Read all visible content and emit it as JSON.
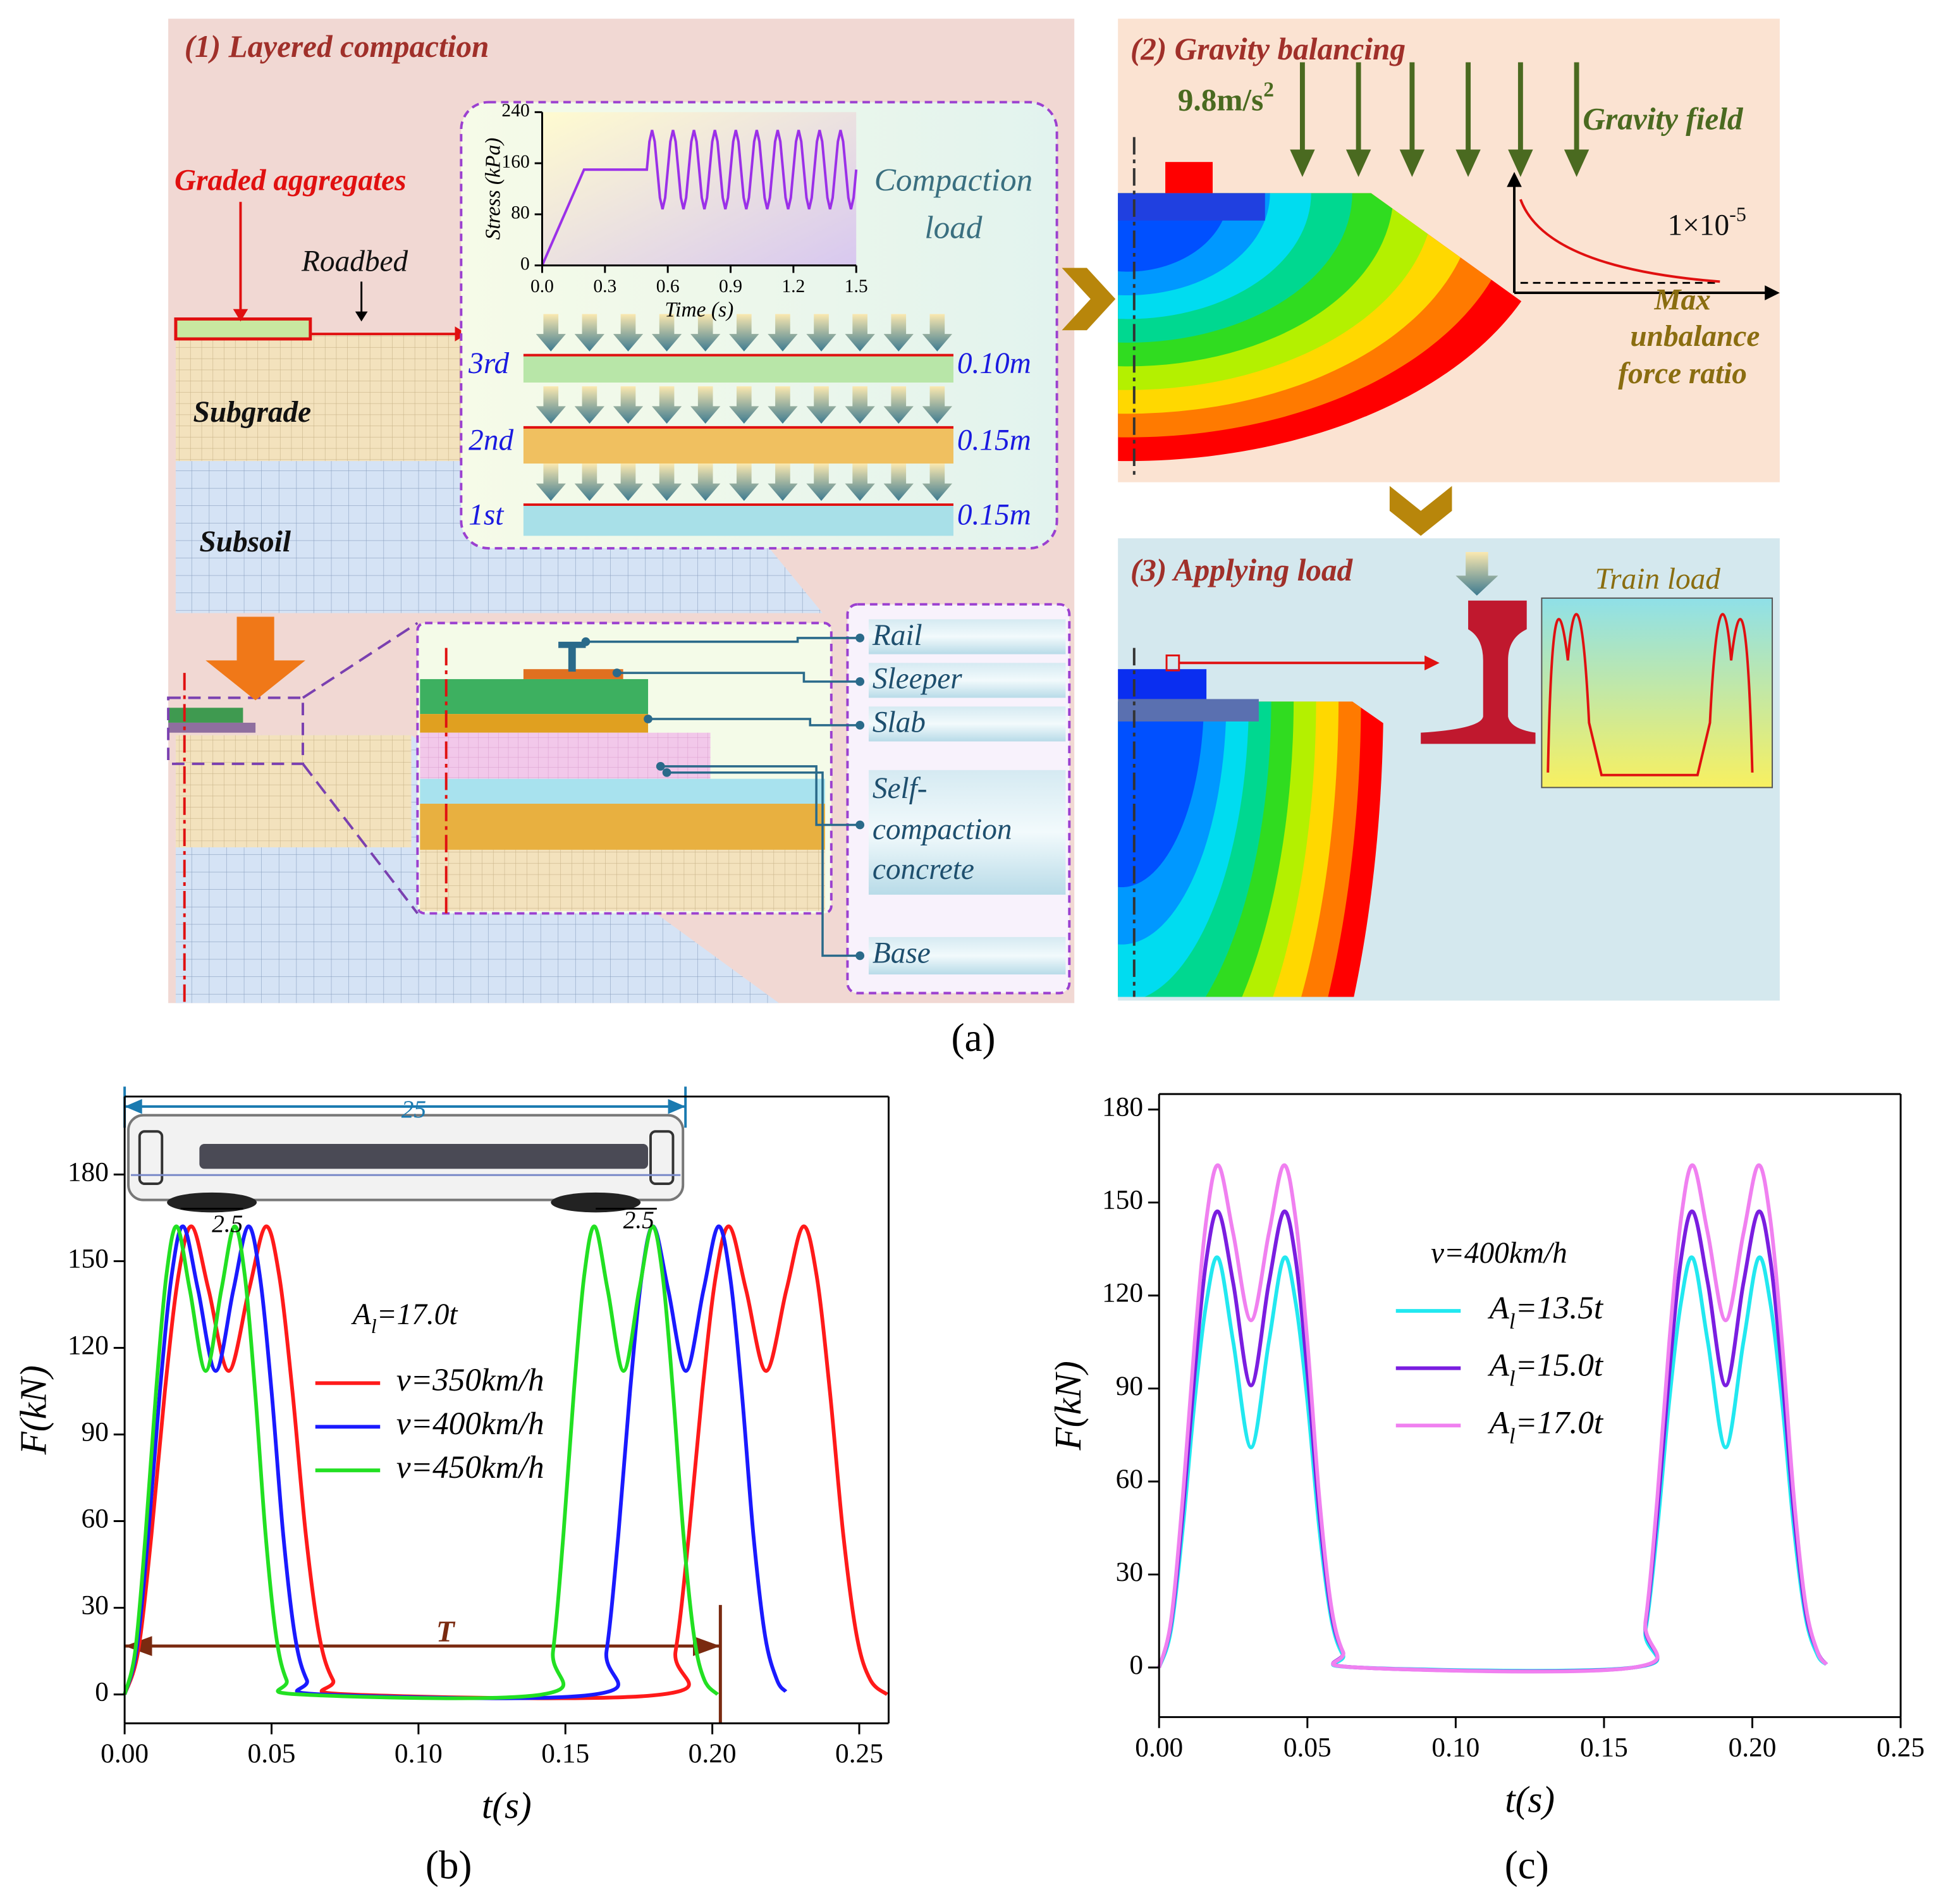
{
  "panel_a": {
    "caption": "(a)",
    "compaction": {
      "title": "(1)  Layered compaction",
      "graded_aggregates": "Graded aggregates",
      "roadbed": "Roadbed",
      "subgrade": "Subgrade",
      "subsoil": "Subsoil",
      "compaction_load": [
        "Compaction",
        "load"
      ],
      "layers": [
        {
          "label": "3rd",
          "thickness": "0.10m"
        },
        {
          "label": "2nd",
          "thickness": "0.15m"
        },
        {
          "label": "1st",
          "thickness": "0.15m"
        }
      ],
      "components": [
        "Rail",
        "Sleeper",
        "Slab",
        "Self-",
        "compaction",
        "concrete",
        "Base"
      ]
    },
    "gravity": {
      "title": "(2)  Gravity balancing",
      "acceleration": "9.8m/s2",
      "field": "Gravity field",
      "threshold": "1×10-5",
      "ratio": [
        "Max",
        "unbalance",
        "force ratio"
      ]
    },
    "load": {
      "title": "(3)  Applying load",
      "train_load": "Train load"
    }
  },
  "chart_data": [
    {
      "type": "line",
      "y_label": "Stress (kPa)",
      "x_label": "Time (s)",
      "xlim": [
        0,
        1.5
      ],
      "ylim": [
        0,
        240
      ],
      "xticks": [
        {
          "value": 0,
          "label": "0.0"
        },
        {
          "value": 0.3,
          "label": "0.3"
        },
        {
          "value": 0.6,
          "label": "0.6"
        },
        {
          "value": 0.9,
          "label": "0.9"
        },
        {
          "value": 1.2,
          "label": "1.2"
        },
        {
          "value": 1.5,
          "label": "1.5"
        }
      ],
      "yticks": [
        0,
        80,
        160,
        240
      ],
      "series": [
        {
          "color": "#9b30e8",
          "x": [
            0,
            0.2,
            0.5,
            0.5125,
            0.525,
            0.5375,
            0.55,
            0.5625,
            0.575,
            0.5875,
            0.6,
            0.6125,
            0.625,
            0.6375,
            0.65,
            0.6625,
            0.675,
            0.6875,
            0.7,
            0.7125,
            0.725,
            0.7375,
            0.75,
            0.7625,
            0.775,
            0.7875,
            0.8,
            0.8125,
            0.825,
            0.8375,
            0.85,
            0.8625,
            0.875,
            0.8875,
            0.9,
            0.9125,
            0.925,
            0.9375,
            0.95,
            0.9625,
            0.975,
            0.9875,
            1.0,
            1.0125,
            1.025,
            1.0375,
            1.05,
            1.0625,
            1.075,
            1.0875,
            1.1,
            1.1125,
            1.125,
            1.1375,
            1.15,
            1.1625,
            1.175,
            1.1875,
            1.2,
            1.2125,
            1.225,
            1.2375,
            1.25,
            1.2625,
            1.275,
            1.2875,
            1.3,
            1.3125,
            1.325,
            1.3375,
            1.35,
            1.3625,
            1.375,
            1.3875,
            1.4,
            1.4125,
            1.425,
            1.4375,
            1.45,
            1.4625,
            1.475,
            1.4875,
            1.5
          ],
          "values": [
            0,
            150,
            150,
            194,
            212,
            194,
            150,
            106,
            88,
            106,
            150,
            194,
            212,
            194,
            150,
            106,
            88,
            106,
            150,
            194,
            212,
            194,
            150,
            106,
            88,
            106,
            150,
            194,
            212,
            194,
            150,
            106,
            88,
            106,
            150,
            194,
            212,
            194,
            150,
            106,
            88,
            106,
            150,
            194,
            212,
            194,
            150,
            106,
            88,
            106,
            150,
            194,
            212,
            194,
            150,
            106,
            88,
            106,
            150,
            194,
            212,
            194,
            150,
            106,
            88,
            106,
            150,
            194,
            212,
            194,
            150,
            106,
            88,
            106,
            150,
            194,
            212,
            194,
            150,
            106,
            88,
            106,
            150
          ]
        }
      ]
    },
    {
      "type": "line",
      "caption": "(b)",
      "x_label": "t(s)",
      "y_label": "F(kN)",
      "xlim": [
        0,
        0.26
      ],
      "ylim": [
        -10,
        207
      ],
      "xticks": [
        {
          "value": 0,
          "label": "0.00"
        },
        {
          "value": 0.05,
          "label": "0.05"
        },
        {
          "value": 0.1,
          "label": "0.10"
        },
        {
          "value": 0.15,
          "label": "0.15"
        },
        {
          "value": 0.2,
          "label": "0.20"
        },
        {
          "value": 0.25,
          "label": "0.25"
        }
      ],
      "yticks": [
        0,
        30,
        60,
        90,
        120,
        150,
        180
      ],
      "annotations": [
        "Al=17.0t",
        "25",
        "2.5",
        "2.5",
        "T"
      ],
      "series": [
        {
          "name": "v=350km/h",
          "color": "#ff1a1a",
          "x": [
            0,
            0.0046,
            0.0091,
            0.0137,
            0.0183,
            0.0229,
            0.0286,
            0.0354,
            0.0423,
            0.048,
            0.0526,
            0.0571,
            0.0617,
            0.0663,
            0.0709,
            0.0766,
            0.1829,
            0.1875,
            0.192,
            0.1966,
            0.2012,
            0.2058,
            0.2115,
            0.2183,
            0.2252,
            0.2309,
            0.2355,
            0.24,
            0.2446,
            0.2492,
            0.2538,
            0.2595
          ],
          "values": [
            0,
            15,
            55,
            105,
            145,
            162,
            140,
            112,
            140,
            162,
            145,
            105,
            55,
            20,
            5,
            0,
            0,
            15,
            55,
            105,
            145,
            162,
            140,
            112,
            140,
            162,
            145,
            105,
            55,
            20,
            5,
            0
          ]
        },
        {
          "name": "v=400km/h",
          "color": "#1a1aff",
          "x": [
            0,
            0.004,
            0.008,
            0.012,
            0.016,
            0.02,
            0.025,
            0.031,
            0.037,
            0.042,
            0.046,
            0.05,
            0.054,
            0.058,
            0.062,
            0.067,
            0.16,
            0.164,
            0.168,
            0.172,
            0.176,
            0.18,
            0.185,
            0.191,
            0.197,
            0.202,
            0.206,
            0.21,
            0.214,
            0.218,
            0.222,
            0.225
          ],
          "values": [
            0,
            15,
            55,
            105,
            145,
            162,
            140,
            112,
            140,
            162,
            145,
            105,
            55,
            20,
            5,
            0,
            0,
            15,
            55,
            105,
            145,
            162,
            140,
            112,
            140,
            162,
            145,
            105,
            55,
            20,
            5,
            1
          ]
        },
        {
          "name": "v=450km/h",
          "color": "#22e022",
          "x": [
            0,
            0.0036,
            0.0071,
            0.0107,
            0.0142,
            0.0178,
            0.0222,
            0.0276,
            0.0329,
            0.0373,
            0.0409,
            0.0444,
            0.048,
            0.0516,
            0.0551,
            0.0596,
            0.1422,
            0.1458,
            0.1493,
            0.1529,
            0.1564,
            0.16,
            0.1644,
            0.1698,
            0.1751,
            0.1795,
            0.1831,
            0.1866,
            0.1902,
            0.1938,
            0.1973,
            0.2018
          ],
          "values": [
            0,
            15,
            55,
            105,
            145,
            162,
            140,
            112,
            140,
            162,
            145,
            105,
            55,
            20,
            5,
            0,
            0,
            15,
            55,
            105,
            145,
            162,
            140,
            112,
            140,
            162,
            145,
            105,
            55,
            20,
            5,
            0
          ]
        }
      ]
    },
    {
      "type": "line",
      "caption": "(c)",
      "x_label": "t(s)",
      "y_label": "F(kN)",
      "xlim": [
        0,
        0.25
      ],
      "ylim": [
        -16,
        185
      ],
      "xticks": [
        {
          "value": 0,
          "label": "0.00"
        },
        {
          "value": 0.05,
          "label": "0.05"
        },
        {
          "value": 0.1,
          "label": "0.10"
        },
        {
          "value": 0.15,
          "label": "0.15"
        },
        {
          "value": 0.2,
          "label": "0.20"
        },
        {
          "value": 0.25,
          "label": "0.25"
        }
      ],
      "yticks": [
        0,
        30,
        60,
        90,
        120,
        150,
        180
      ],
      "annotations": [
        "v=400km/h"
      ],
      "x": [
        0,
        0.004,
        0.008,
        0.012,
        0.016,
        0.02,
        0.025,
        0.031,
        0.037,
        0.042,
        0.046,
        0.05,
        0.054,
        0.058,
        0.062,
        0.067,
        0.16,
        0.164,
        0.168,
        0.172,
        0.176,
        0.18,
        0.185,
        0.191,
        0.197,
        0.202,
        0.206,
        0.21,
        0.214,
        0.218,
        0.222,
        0.225
      ],
      "series": [
        {
          "name": "Al=13.5t",
          "color": "#22e8f0",
          "values": [
            0,
            12,
            45,
            86,
            118,
            132,
            105,
            71,
            105,
            132,
            118,
            86,
            45,
            16,
            4,
            0,
            0,
            12,
            45,
            86,
            118,
            132,
            105,
            71,
            105,
            132,
            118,
            86,
            45,
            16,
            4,
            1
          ]
        },
        {
          "name": "Al=15.0t",
          "color": "#7a1ee0",
          "values": [
            0,
            14,
            50,
            95,
            132,
            147,
            124,
            91,
            124,
            147,
            132,
            95,
            50,
            18,
            5,
            0,
            0,
            14,
            50,
            95,
            132,
            147,
            124,
            91,
            124,
            147,
            132,
            95,
            50,
            18,
            5,
            1
          ]
        },
        {
          "name": "Al=17.0t",
          "color": "#f080f0",
          "values": [
            0,
            15,
            55,
            105,
            145,
            162,
            140,
            112,
            140,
            162,
            145,
            105,
            55,
            20,
            5,
            0,
            0,
            15,
            55,
            105,
            145,
            162,
            140,
            112,
            140,
            162,
            145,
            105,
            55,
            20,
            5,
            1
          ]
        }
      ]
    }
  ]
}
